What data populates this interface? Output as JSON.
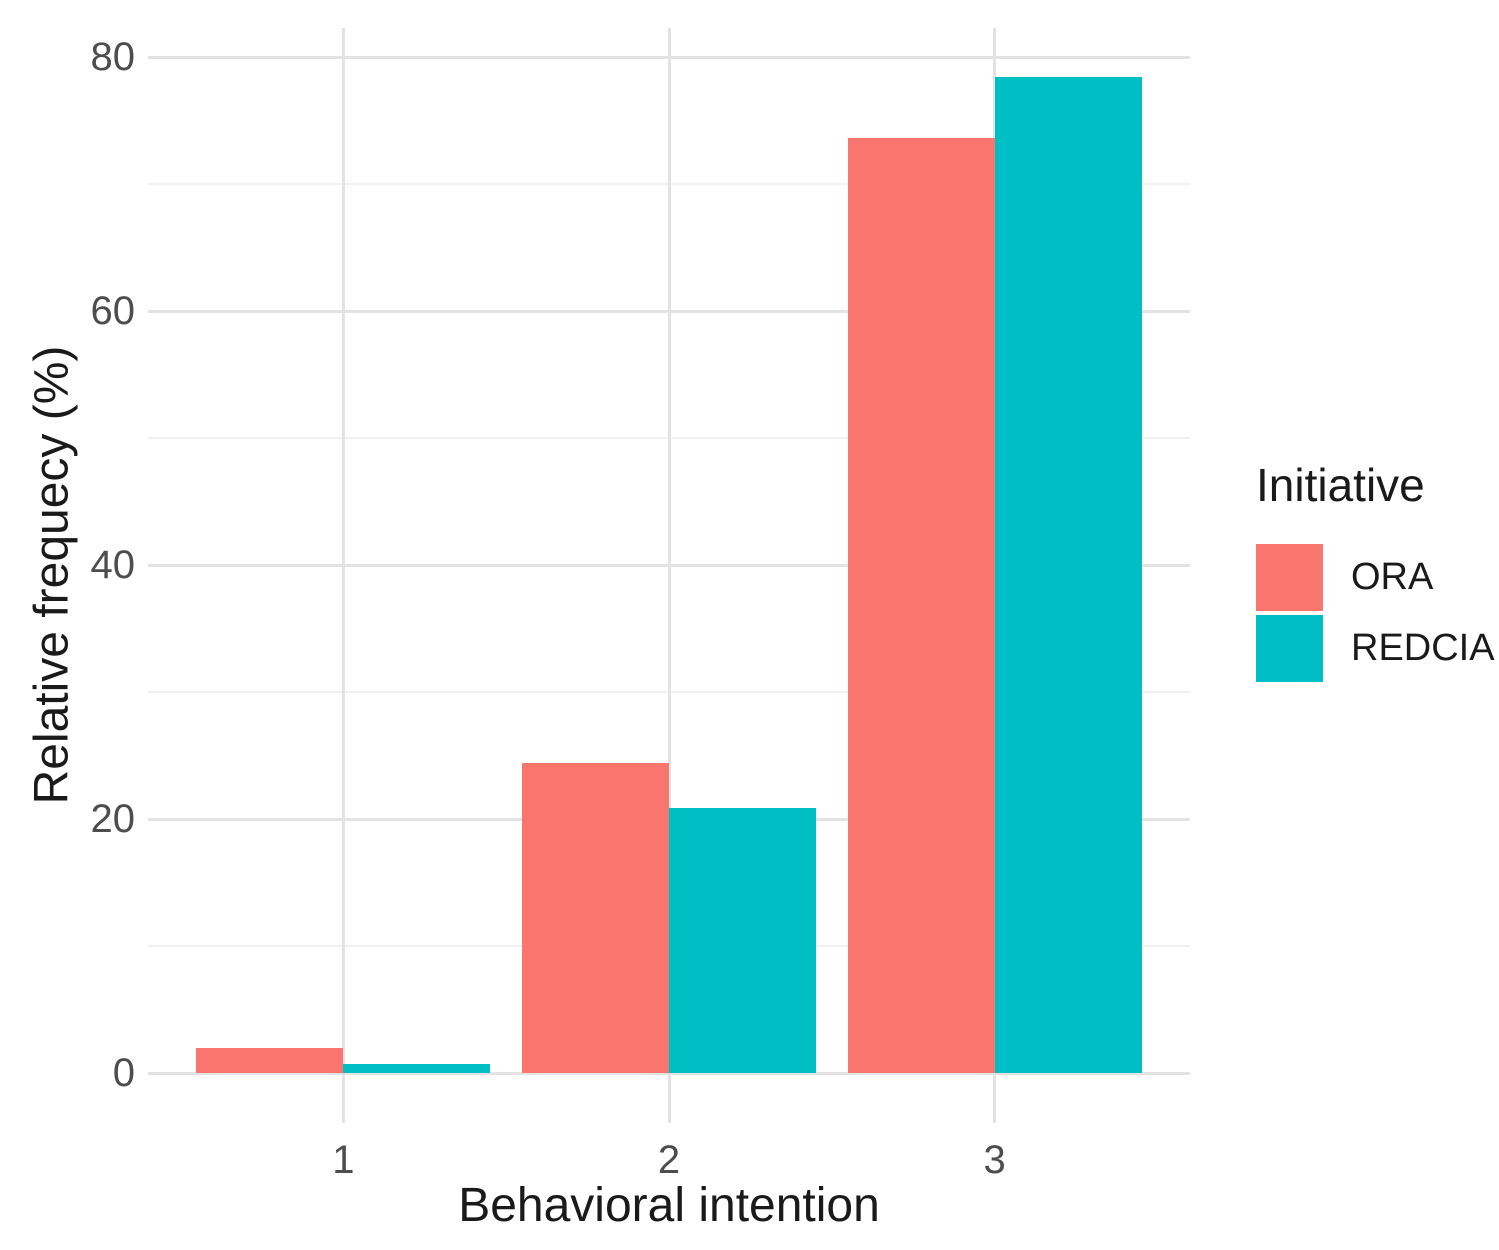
{
  "chart_data": {
    "type": "bar",
    "title": "",
    "xlabel": "Behavioral intention",
    "ylabel": "Relative frequecy (%)",
    "categories": [
      "1",
      "2",
      "3"
    ],
    "series": [
      {
        "name": "ORA",
        "color": "#F8766D",
        "values": [
          2.0,
          24.4,
          73.6
        ]
      },
      {
        "name": "REDCIA",
        "color": "#00BFC4",
        "values": [
          0.7,
          20.9,
          78.4
        ]
      }
    ],
    "ylim": [
      0,
      80
    ],
    "yticks_major": [
      0,
      20,
      40,
      60,
      80
    ],
    "yticks_minor": [
      10,
      30,
      50,
      70
    ],
    "grid": "horizontal major+minor, vertical major at category centers, no axis lines, no tick marks",
    "legend_position": "right-center"
  },
  "legend": {
    "title": "Initiative",
    "items": [
      {
        "label": "ORA",
        "color": "#F8766D"
      },
      {
        "label": "REDCIA",
        "color": "#00BFC4"
      }
    ]
  },
  "colors": {
    "background": "#FFFFFF",
    "grid_major": "#E3E3E3",
    "grid_minor": "#F1F1F1",
    "tick_label_text": "#4D4D4D",
    "axis_title_text": "#1A1A1A",
    "series_ora": "#F8766D",
    "series_redcia": "#00BFC4"
  }
}
